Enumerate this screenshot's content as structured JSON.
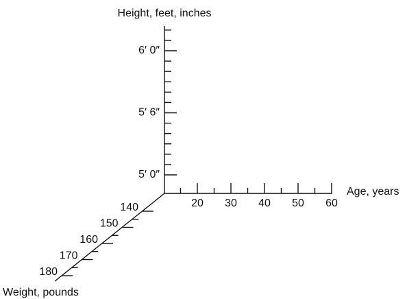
{
  "title": "Height, feet, inches",
  "axes": {
    "height": {
      "label": "Height, feet, inches",
      "ticks": [
        {
          "value": 60,
          "label": "5′ 0″"
        },
        {
          "value": 66,
          "label": "5′ 6″"
        },
        {
          "value": 72,
          "label": "6′ 0″"
        }
      ]
    },
    "age": {
      "label": "Age, years",
      "ticks": [
        20,
        30,
        40,
        50,
        60
      ]
    },
    "weight": {
      "label": "Weight, pounds",
      "ticks": [
        140,
        150,
        160,
        170,
        180
      ]
    }
  }
}
